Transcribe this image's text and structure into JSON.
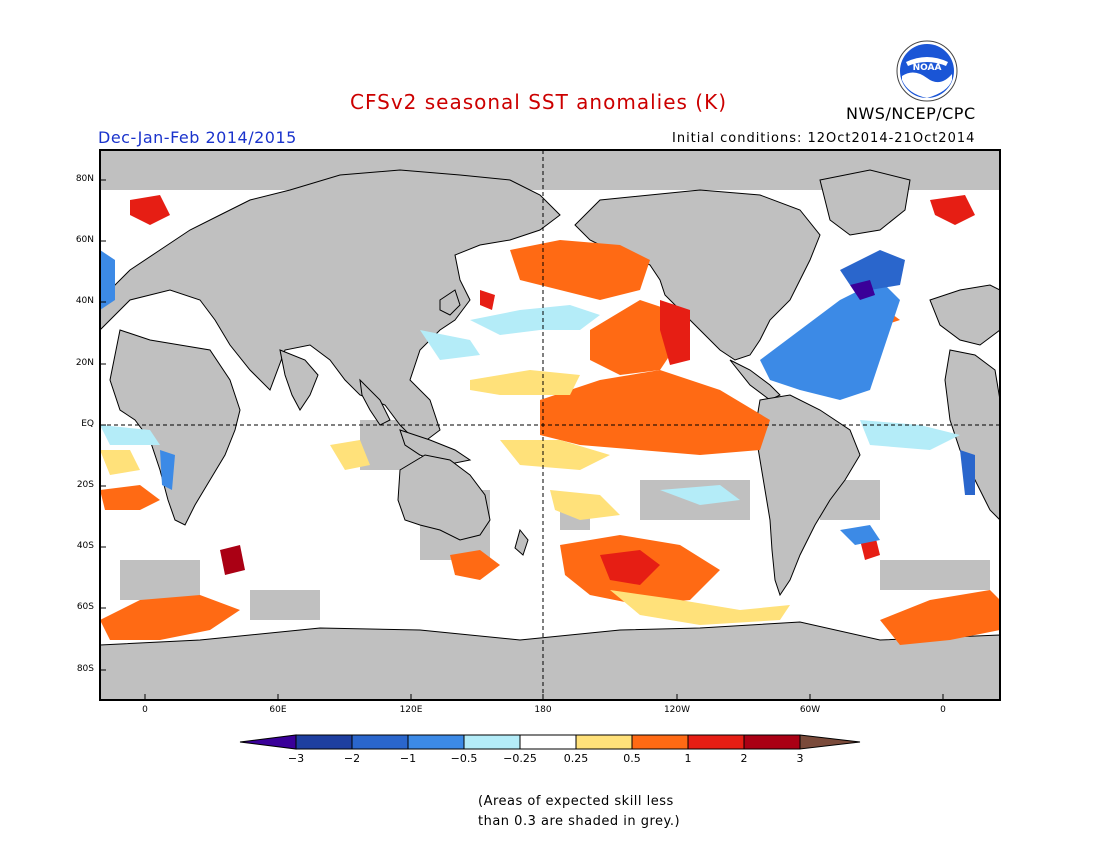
{
  "header": {
    "title": "CFSv2 seasonal SST anomalies (K)",
    "season": "Dec-Jan-Feb 2014/2015",
    "initial_conditions": "Initial conditions: 12Oct2014-21Oct2014",
    "agency": "NWS/NCEP/CPC",
    "logo_text": "NOAA"
  },
  "map": {
    "lat_labels": [
      "80N",
      "60N",
      "40N",
      "20N",
      "EQ",
      "20S",
      "40S",
      "60S",
      "80S"
    ],
    "lon_labels": [
      "0",
      "60E",
      "120E",
      "180",
      "120W",
      "60W",
      "0"
    ],
    "land_color": "#c0c0c0",
    "grey_mask_meaning": "low skill"
  },
  "colorbar": {
    "labels": [
      "−3",
      "−2",
      "−1",
      "−0.5",
      "−0.25",
      "0.25",
      "0.5",
      "1",
      "2",
      "3"
    ],
    "colors": [
      "#1e3fa0",
      "#2a66cc",
      "#3c8ae6",
      "#66b0f0",
      "#b4ecf8",
      "#ffffff",
      "#ffe17a",
      "#ff6a14",
      "#e61e14",
      "#aa0014"
    ],
    "low_end_color": "#3a0099",
    "high_end_color": "#7a4a3a"
  },
  "note": {
    "line1": "(Areas of expected skill less",
    "line2": "than 0.3 are shaded in grey.)"
  }
}
